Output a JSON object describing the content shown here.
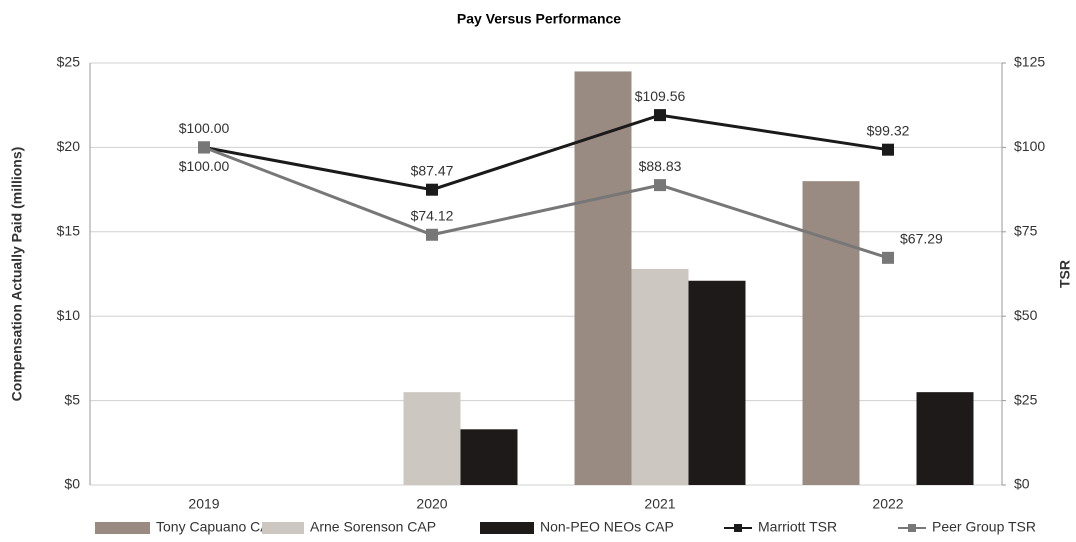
{
  "chart_data": {
    "type": "bar",
    "title": "Pay Versus Performance",
    "y_label": "Compensation Actually Paid (millions)",
    "y2_label": "TSR",
    "categories": [
      "2019",
      "2020",
      "2021",
      "2022"
    ],
    "ylim": [
      0,
      25
    ],
    "yticks": [
      {
        "value": 0,
        "label": "$0"
      },
      {
        "value": 5,
        "label": "$5"
      },
      {
        "value": 10,
        "label": "$10"
      },
      {
        "value": 15,
        "label": "$15"
      },
      {
        "value": 20,
        "label": "$20"
      },
      {
        "value": 25,
        "label": "$25"
      }
    ],
    "y2lim": [
      0,
      125
    ],
    "y2ticks": [
      {
        "value": 0,
        "label": "$0"
      },
      {
        "value": 25,
        "label": "$25"
      },
      {
        "value": 50,
        "label": "$50"
      },
      {
        "value": 75,
        "label": "$75"
      },
      {
        "value": 100,
        "label": "$100"
      },
      {
        "value": 125,
        "label": "$125"
      }
    ],
    "grid": true,
    "legend": "bottom",
    "series": [
      {
        "name": "Tony Capuano CAP",
        "type": "bar",
        "color": "#9a8b82",
        "values": [
          null,
          null,
          24.5,
          18.0
        ]
      },
      {
        "name": "Arne Sorenson CAP",
        "type": "bar",
        "color": "#ccc7c0",
        "values": [
          null,
          5.5,
          12.8,
          null
        ]
      },
      {
        "name": "Non-PEO NEOs CAP",
        "type": "bar",
        "color": "#1f1a1a",
        "values": [
          null,
          3.3,
          12.1,
          5.5
        ]
      },
      {
        "name": "Marriott TSR",
        "type": "line",
        "axis": "y2",
        "color": "#1a1a1a",
        "values": [
          100,
          87.47,
          109.56,
          99.32
        ],
        "value_labels": [
          "$100.00",
          "$87.47",
          "$109.56",
          "$99.32"
        ]
      },
      {
        "name": "Peer Group TSR",
        "type": "line",
        "axis": "y2",
        "color": "#777777",
        "values": [
          100,
          74.12,
          88.83,
          67.29
        ],
        "value_labels": [
          "$100.00",
          "$74.12",
          "$88.83",
          "$67.29"
        ]
      }
    ]
  }
}
